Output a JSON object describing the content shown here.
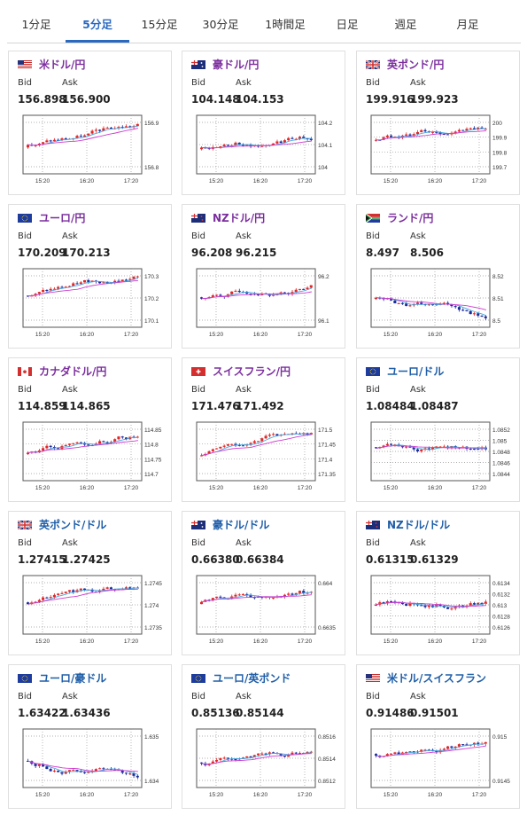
{
  "tabs": [
    {
      "label": "1分足",
      "active": false
    },
    {
      "label": "5分足",
      "active": true
    },
    {
      "label": "15分足",
      "active": false
    },
    {
      "label": "30分足",
      "active": false
    },
    {
      "label": "1時間足",
      "active": false
    },
    {
      "label": "日足",
      "active": false
    },
    {
      "label": "週足",
      "active": false
    },
    {
      "label": "月足",
      "active": false
    }
  ],
  "colors": {
    "accent": "#2a69c2",
    "pair_yen": "#7b2e9e",
    "pair_other": "#1f5ea8",
    "candle_up": "#e32626",
    "candle_down": "#1a2a9b",
    "ma_fast": "#45a8e0",
    "ma_slow": "#d03bd0"
  },
  "labels": {
    "bid": "Bid",
    "ask": "Ask"
  },
  "cards": [
    {
      "pair": "米ドル/円",
      "flag": "us",
      "bid": "156.898",
      "ask": "156.900",
      "color": "yen",
      "yticks": [
        "156.9",
        "156.8"
      ],
      "xticks": [
        "15:20",
        "16:20",
        "17:20"
      ]
    },
    {
      "pair": "豪ドル/円",
      "flag": "au",
      "bid": "104.148",
      "ask": "104.153",
      "color": "yen",
      "yticks": [
        "104.2",
        "104.1",
        "104"
      ],
      "xticks": [
        "15:20",
        "16:20",
        "17:20"
      ]
    },
    {
      "pair": "英ポンド/円",
      "flag": "gb",
      "bid": "199.916",
      "ask": "199.923",
      "color": "yen",
      "yticks": [
        "200",
        "199.9",
        "199.8",
        "199.7"
      ],
      "xticks": [
        "15:20",
        "16:20",
        "17:20"
      ]
    },
    {
      "pair": "ユーロ/円",
      "flag": "eu",
      "bid": "170.209",
      "ask": "170.213",
      "color": "yen",
      "yticks": [
        "170.3",
        "170.2",
        "170.1"
      ],
      "xticks": [
        "15:20",
        "16:20",
        "17:20"
      ]
    },
    {
      "pair": "NZドル/円",
      "flag": "nz",
      "bid": "96.208",
      "ask": "96.215",
      "color": "yen",
      "yticks": [
        "96.2",
        "96.1"
      ],
      "xticks": [
        "15:20",
        "16:20",
        "17:20"
      ]
    },
    {
      "pair": "ランド/円",
      "flag": "za",
      "bid": "8.497",
      "ask": "8.506",
      "color": "yen",
      "yticks": [
        "8.52",
        "8.51",
        "8.5"
      ],
      "xticks": [
        "15:20",
        "16:20",
        "17:20"
      ]
    },
    {
      "pair": "カナダドル/円",
      "flag": "ca",
      "bid": "114.859",
      "ask": "114.865",
      "color": "yen",
      "yticks": [
        "114.85",
        "114.8",
        "114.75",
        "114.7"
      ],
      "xticks": [
        "15:20",
        "16:20",
        "17:20"
      ]
    },
    {
      "pair": "スイスフラン/円",
      "flag": "ch",
      "bid": "171.476",
      "ask": "171.492",
      "color": "yen",
      "yticks": [
        "171.5",
        "171.45",
        "171.4",
        "171.35"
      ],
      "xticks": [
        "15:20",
        "16:20",
        "17:20"
      ]
    },
    {
      "pair": "ユーロ/ドル",
      "flag": "eu",
      "bid": "1.08484",
      "ask": "1.08487",
      "color": "other",
      "yticks": [
        "1.0852",
        "1.085",
        "1.0848",
        "1.0846",
        "1.0844"
      ],
      "xticks": [
        "15:20",
        "16:20",
        "17:20"
      ]
    },
    {
      "pair": "英ポンド/ドル",
      "flag": "gb",
      "bid": "1.27415",
      "ask": "1.27425",
      "color": "other",
      "yticks": [
        "1.2745",
        "1.274",
        "1.2735"
      ],
      "xticks": [
        "15:20",
        "16:20",
        "17:20"
      ]
    },
    {
      "pair": "豪ドル/ドル",
      "flag": "au",
      "bid": "0.66380",
      "ask": "0.66384",
      "color": "other",
      "yticks": [
        "0.664",
        "0.6635"
      ],
      "xticks": [
        "15:20",
        "16:20",
        "17:20"
      ]
    },
    {
      "pair": "NZドル/ドル",
      "flag": "nz",
      "bid": "0.61315",
      "ask": "0.61329",
      "color": "other",
      "yticks": [
        "0.6134",
        "0.6132",
        "0.613",
        "0.6128",
        "0.6126"
      ],
      "xticks": [
        "15:20",
        "16:20",
        "17:20"
      ]
    },
    {
      "pair": "ユーロ/豪ドル",
      "flag": "eu",
      "bid": "1.63422",
      "ask": "1.63436",
      "color": "other",
      "yticks": [
        "1.635",
        "1.634"
      ],
      "xticks": [
        "15:20",
        "16:20",
        "17:20"
      ]
    },
    {
      "pair": "ユーロ/英ポンド",
      "flag": "eu",
      "bid": "0.85136",
      "ask": "0.85144",
      "color": "other",
      "yticks": [
        "0.8516",
        "0.8514",
        "0.8512"
      ],
      "xticks": [
        "15:20",
        "16:20",
        "17:20"
      ]
    },
    {
      "pair": "米ドル/スイスフラン",
      "flag": "us",
      "bid": "0.91486",
      "ask": "0.91501",
      "color": "other",
      "yticks": [
        "0.915",
        "0.9145"
      ],
      "xticks": [
        "15:20",
        "16:20",
        "17:20"
      ]
    }
  ]
}
